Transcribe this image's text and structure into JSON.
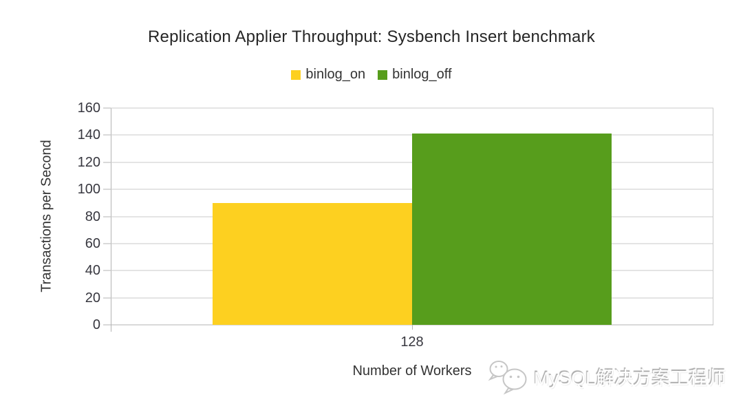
{
  "chart_data": {
    "type": "bar",
    "title": "Replication Applier Throughput: Sysbench Insert benchmark",
    "xlabel": "Number of Workers",
    "ylabel": "Transactions per Second",
    "categories": [
      "128"
    ],
    "series": [
      {
        "name": "binlog_on",
        "color": "#FDD020",
        "values": [
          90
        ]
      },
      {
        "name": "binlog_off",
        "color": "#579D1C",
        "values": [
          141
        ]
      }
    ],
    "ylim": [
      0,
      160
    ],
    "yticks": [
      0,
      20,
      40,
      60,
      80,
      100,
      120,
      140,
      160
    ],
    "grid": "horizontal",
    "legend_position": "top"
  },
  "watermark": {
    "icon": "wechat-icon",
    "text": "MySQL解决方案工程师"
  },
  "colors": {
    "background": "#ffffff",
    "gridline": "#c9c9c9",
    "axis": "#b3b3b3",
    "label_text": "#333333",
    "title_text": "#262626",
    "watermark_gray": "#c6c6c6"
  }
}
